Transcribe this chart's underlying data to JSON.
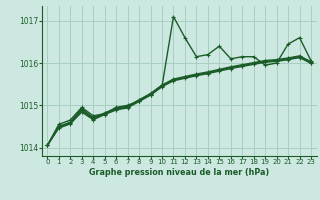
{
  "title": "Graphe pression niveau de la mer (hPa)",
  "bg_color": "#cde8e0",
  "grid_color": "#a8cfc4",
  "line_color": "#1a5c28",
  "xlim": [
    -0.5,
    23.5
  ],
  "ylim": [
    1013.8,
    1017.35
  ],
  "yticks": [
    1014,
    1015,
    1016,
    1017
  ],
  "xticks": [
    0,
    1,
    2,
    3,
    4,
    5,
    6,
    7,
    8,
    9,
    10,
    11,
    12,
    13,
    14,
    15,
    16,
    17,
    18,
    19,
    20,
    21,
    22,
    23
  ],
  "series": [
    [
      1014.05,
      1014.55,
      1014.65,
      1014.95,
      1014.75,
      1014.8,
      1014.95,
      1015.0,
      1015.1,
      1015.25,
      1015.45,
      1017.1,
      1016.6,
      1016.15,
      1016.2,
      1016.4,
      1016.1,
      1016.15,
      1016.15,
      1015.95,
      1016.0,
      1016.45,
      1016.6,
      1016.05
    ],
    [
      1014.05,
      1014.5,
      1014.6,
      1014.92,
      1014.7,
      1014.82,
      1014.93,
      1014.98,
      1015.13,
      1015.28,
      1015.48,
      1015.62,
      1015.68,
      1015.74,
      1015.79,
      1015.85,
      1015.91,
      1015.96,
      1016.01,
      1016.06,
      1016.08,
      1016.12,
      1016.17,
      1016.03
    ],
    [
      1014.05,
      1014.48,
      1014.58,
      1014.88,
      1014.68,
      1014.8,
      1014.91,
      1014.96,
      1015.11,
      1015.26,
      1015.46,
      1015.6,
      1015.66,
      1015.72,
      1015.77,
      1015.83,
      1015.89,
      1015.94,
      1015.99,
      1016.04,
      1016.06,
      1016.1,
      1016.15,
      1016.01
    ],
    [
      1014.05,
      1014.46,
      1014.56,
      1014.84,
      1014.66,
      1014.78,
      1014.89,
      1014.94,
      1015.09,
      1015.24,
      1015.44,
      1015.58,
      1015.64,
      1015.7,
      1015.75,
      1015.81,
      1015.87,
      1015.92,
      1015.97,
      1016.02,
      1016.04,
      1016.08,
      1016.13,
      1015.99
    ]
  ],
  "xlabel_fontsize": 5.8,
  "ylabel_fontsize": 6.0,
  "xtick_fontsize": 5.0,
  "ytick_fontsize": 5.5
}
